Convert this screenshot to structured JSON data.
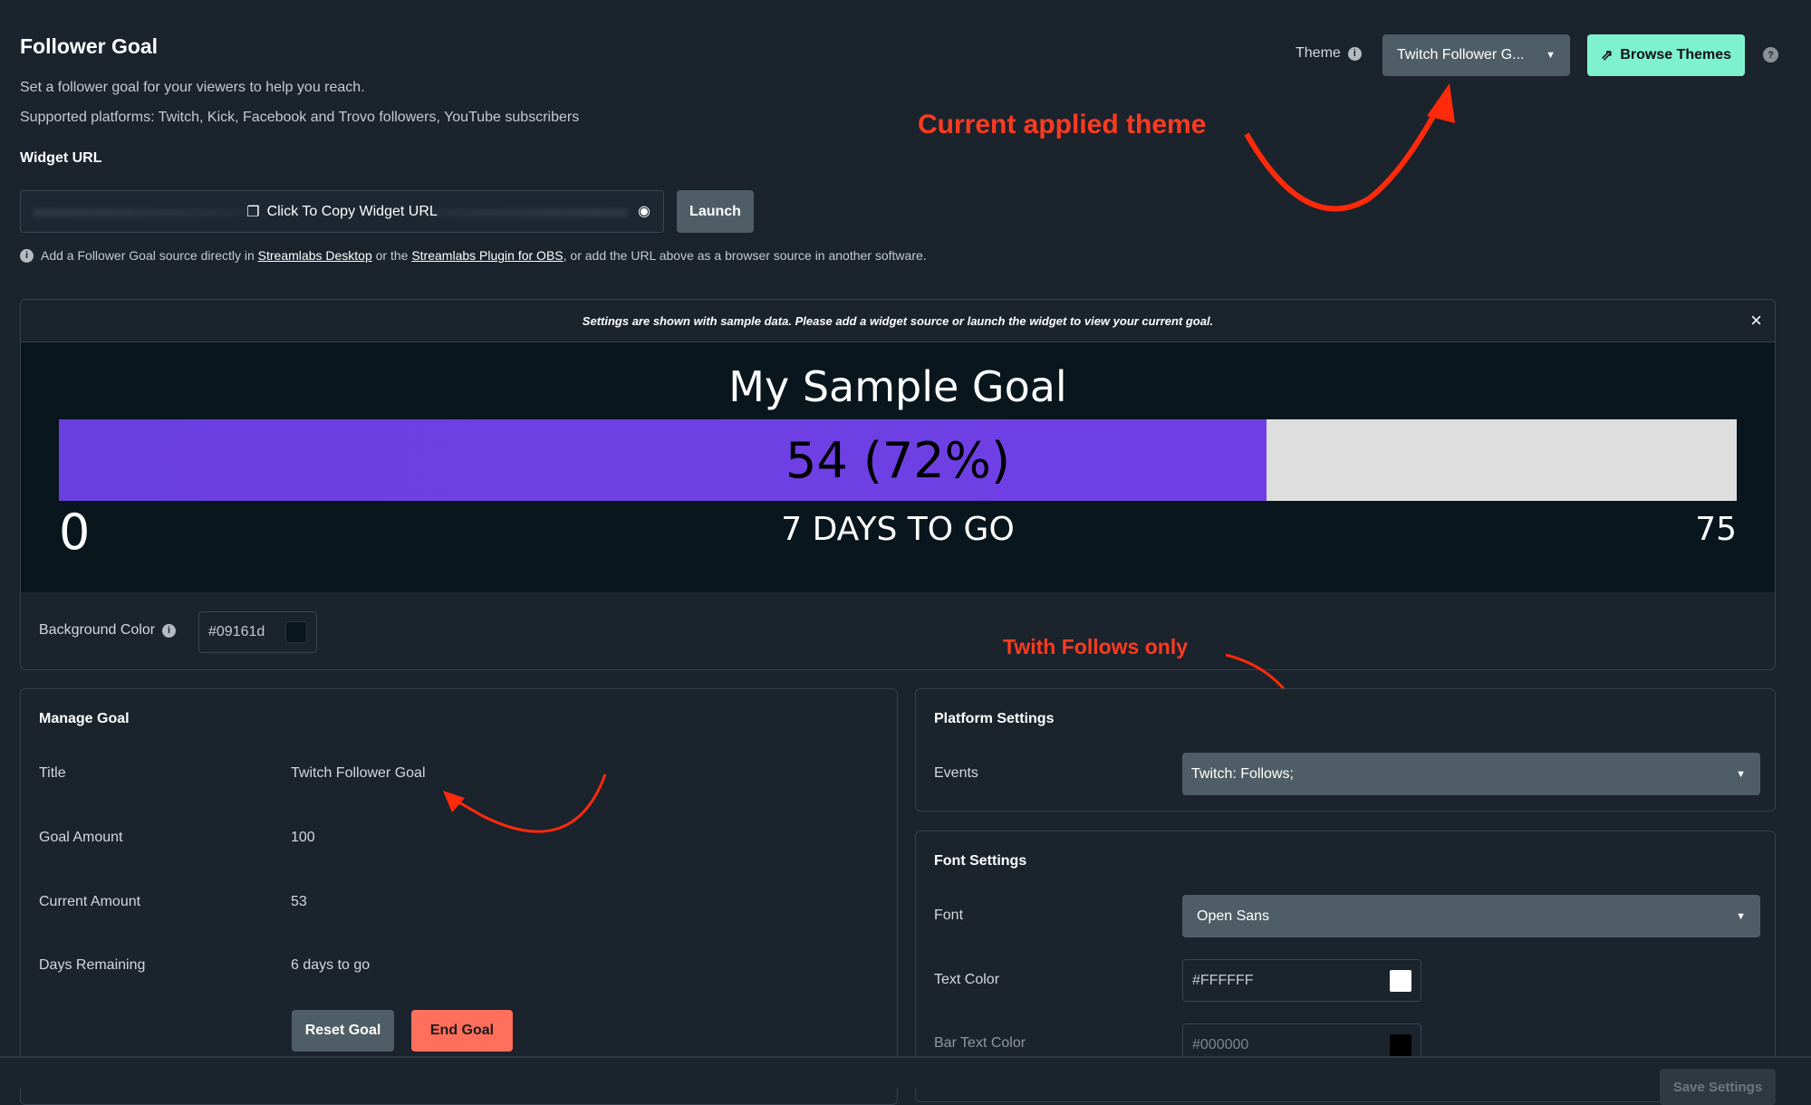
{
  "header": {
    "title": "Follower Goal",
    "description": "Set a follower goal for your viewers to help you reach.",
    "platforms": "Supported platforms: Twitch, Kick, Facebook and Trovo followers, YouTube subscribers",
    "theme_label": "Theme",
    "theme_value": "Twitch Follower G...",
    "browse_themes": "Browse Themes"
  },
  "widget_url": {
    "label": "Widget URL",
    "copy_label": "Click To Copy Widget URL",
    "launch": "Launch",
    "info_pre": "Add a Follower Goal source directly in",
    "link1": "Streamlabs Desktop",
    "info_mid": "or the",
    "link2": "Streamlabs Plugin for OBS",
    "info_post": ", or add the URL above as a browser source in another software."
  },
  "annotations": {
    "theme": "Current applied theme",
    "events": "Twith Follows only"
  },
  "preview": {
    "notice": "Settings are shown with sample data. Please add a widget source or launch the widget to view your current goal.",
    "close": "×",
    "goal_title": "My Sample Goal",
    "bar_text": "54 (72%)",
    "progress_percent": 72,
    "min": "0",
    "days": "7 DAYS TO GO",
    "max": "75",
    "bar_color": "#6a3fe0",
    "bar_bg": "#dedede",
    "bg_color": "#09161d"
  },
  "background_color": {
    "label": "Background Color",
    "value": "#09161d"
  },
  "manage_goal": {
    "heading": "Manage Goal",
    "rows": [
      {
        "label": "Title",
        "value": "Twitch Follower Goal"
      },
      {
        "label": "Goal Amount",
        "value": "100"
      },
      {
        "label": "Current Amount",
        "value": "53"
      },
      {
        "label": "Days Remaining",
        "value": "6 days to go"
      }
    ],
    "reset": "Reset Goal",
    "end": "End Goal"
  },
  "platform_settings": {
    "heading": "Platform Settings",
    "events_label": "Events",
    "events_value": "Twitch: Follows;"
  },
  "font_settings": {
    "heading": "Font Settings",
    "font_label": "Font",
    "font_value": "Open Sans",
    "text_color_label": "Text Color",
    "text_color": "#FFFFFF",
    "bar_text_color_label": "Bar Text Color",
    "bar_text_color": "#000000"
  },
  "footer": {
    "save": "Save Settings"
  },
  "colors": {
    "accent": "#7ef2cf",
    "danger": "#ff6f5b",
    "annotation": "#ff3b1f"
  }
}
